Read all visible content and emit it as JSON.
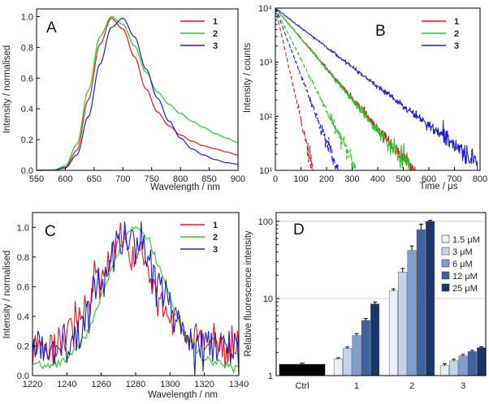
{
  "chart_data": [
    {
      "panel": "A",
      "type": "line",
      "xlabel": "Wavelength / nm",
      "ylabel": "Intensity / normalised",
      "xlim": [
        550,
        900
      ],
      "ylim": [
        0.0,
        1.05
      ],
      "xticks": [
        550,
        600,
        650,
        700,
        750,
        800,
        850,
        900
      ],
      "yticks": [
        0.0,
        0.2,
        0.4,
        0.6,
        0.8,
        1.0
      ],
      "yticks_labels": [
        "0.0",
        "0.2",
        "0.4",
        "0.6",
        "0.8",
        "1.0"
      ],
      "legend": "top-right",
      "series": [
        {
          "name": "1",
          "color": "#e8141c",
          "x": [
            550,
            580,
            600,
            620,
            640,
            660,
            680,
            700,
            720,
            740,
            760,
            780,
            800,
            820,
            840,
            860,
            880,
            900
          ],
          "y": [
            0,
            0.002,
            0.02,
            0.13,
            0.46,
            0.82,
            0.99,
            0.92,
            0.74,
            0.53,
            0.38,
            0.29,
            0.23,
            0.19,
            0.16,
            0.14,
            0.12,
            0.1
          ]
        },
        {
          "name": "2",
          "color": "#22cc22",
          "x": [
            550,
            580,
            600,
            620,
            640,
            660,
            680,
            700,
            720,
            740,
            760,
            780,
            800,
            820,
            840,
            860,
            880,
            900
          ],
          "y": [
            0,
            0.003,
            0.03,
            0.17,
            0.52,
            0.87,
            1.0,
            0.95,
            0.81,
            0.64,
            0.51,
            0.43,
            0.37,
            0.32,
            0.28,
            0.24,
            0.21,
            0.18
          ]
        },
        {
          "name": "3",
          "color": "#1d20cc",
          "x": [
            550,
            580,
            600,
            620,
            640,
            660,
            680,
            700,
            720,
            740,
            760,
            780,
            800,
            820,
            840,
            860,
            880,
            900
          ],
          "y": [
            0,
            0.001,
            0.015,
            0.1,
            0.35,
            0.69,
            0.93,
            0.99,
            0.87,
            0.66,
            0.47,
            0.32,
            0.21,
            0.14,
            0.1,
            0.07,
            0.05,
            0.04
          ]
        }
      ]
    },
    {
      "panel": "B",
      "type": "line",
      "xlabel": "Time / μs",
      "ylabel": "Intensity / counts",
      "xlim": [
        0,
        800
      ],
      "ylim": [
        10,
        10000
      ],
      "yscale": "log",
      "xticks": [
        0,
        100,
        200,
        300,
        400,
        500,
        600,
        700,
        800
      ],
      "yticks": [
        10,
        100,
        1000,
        10000
      ],
      "yticks_labels": [
        "10¹",
        "10²",
        "10³",
        "10⁴"
      ],
      "legend": "top-right",
      "series": [
        {
          "name": "1",
          "color": "#e8141c",
          "lifetime_us": 78,
          "end_us": 560
        },
        {
          "name": "2",
          "color": "#22cc22",
          "lifetime_us": 77,
          "end_us": 530
        },
        {
          "name": "3",
          "color": "#1d20cc",
          "lifetime_us": 120,
          "end_us": 790
        }
      ],
      "dashed_series": [
        {
          "name": "1",
          "color": "#e8141c",
          "lifetime_us": 21,
          "end_us": 145
        },
        {
          "name": "2",
          "color": "#22cc22",
          "lifetime_us": 46,
          "end_us": 320
        },
        {
          "name": "3",
          "color": "#1d20cc",
          "lifetime_us": 35,
          "end_us": 245
        }
      ]
    },
    {
      "panel": "C",
      "type": "line",
      "xlabel": "Wavelength / nm",
      "ylabel": "Intensity / normalised",
      "xlim": [
        1220,
        1340
      ],
      "ylim": [
        0.0,
        1.1
      ],
      "xticks": [
        1220,
        1240,
        1260,
        1280,
        1300,
        1320,
        1340
      ],
      "yticks": [
        0.0,
        0.2,
        0.4,
        0.6,
        0.8,
        1.0
      ],
      "yticks_labels": [
        "0.0",
        "0.2",
        "0.4",
        "0.6",
        "0.8",
        "1.0"
      ],
      "legend": "top-right",
      "series": [
        {
          "name": "1",
          "color": "#e8141c",
          "center_nm": 1274,
          "width_nm": 18,
          "peak": 0.85,
          "baseline": 0.19
        },
        {
          "name": "2",
          "color": "#22cc22",
          "center_nm": 1280,
          "width_nm": 17,
          "peak": 0.99,
          "baseline": 0.06
        },
        {
          "name": "3",
          "color": "#1d20cc",
          "center_nm": 1277,
          "width_nm": 18,
          "peak": 0.92,
          "baseline": 0.16
        }
      ]
    },
    {
      "panel": "D",
      "type": "bar",
      "ylabel": "Relative fluorescence  intensity",
      "yscale": "log",
      "ylim": [
        1,
        130
      ],
      "yticks": [
        1,
        10,
        100
      ],
      "yticks_labels": [
        "1",
        "10",
        "100"
      ],
      "categories": [
        "Ctrl",
        "1",
        "2",
        "3"
      ],
      "legend": "top-right",
      "ctrl": {
        "value": 1.4,
        "error": 0.05,
        "color": "#000000"
      },
      "series": [
        {
          "name": "1.5 μM",
          "color": "#e9eff8",
          "values": [
            null,
            1.65,
            12.5,
            1.35
          ],
          "errors": [
            null,
            0.05,
            0.8,
            0.07
          ]
        },
        {
          "name": "3 μM",
          "color": "#c3d3eb",
          "values": [
            null,
            2.25,
            22,
            1.55
          ],
          "errors": [
            null,
            0.1,
            2.5,
            0.08
          ]
        },
        {
          "name": "6 μM",
          "color": "#7f9fcf",
          "values": [
            null,
            3.3,
            42,
            1.8
          ],
          "errors": [
            null,
            0.2,
            6,
            0.08
          ]
        },
        {
          "name": "12 μM",
          "color": "#3d63a3",
          "values": [
            null,
            5.2,
            78,
            2.05
          ],
          "errors": [
            null,
            0.3,
            14,
            0.08
          ]
        },
        {
          "name": "25 μM",
          "color": "#1a3667",
          "values": [
            null,
            8.5,
            100,
            2.3
          ],
          "errors": [
            null,
            0.5,
            3,
            0.06
          ]
        }
      ]
    }
  ]
}
